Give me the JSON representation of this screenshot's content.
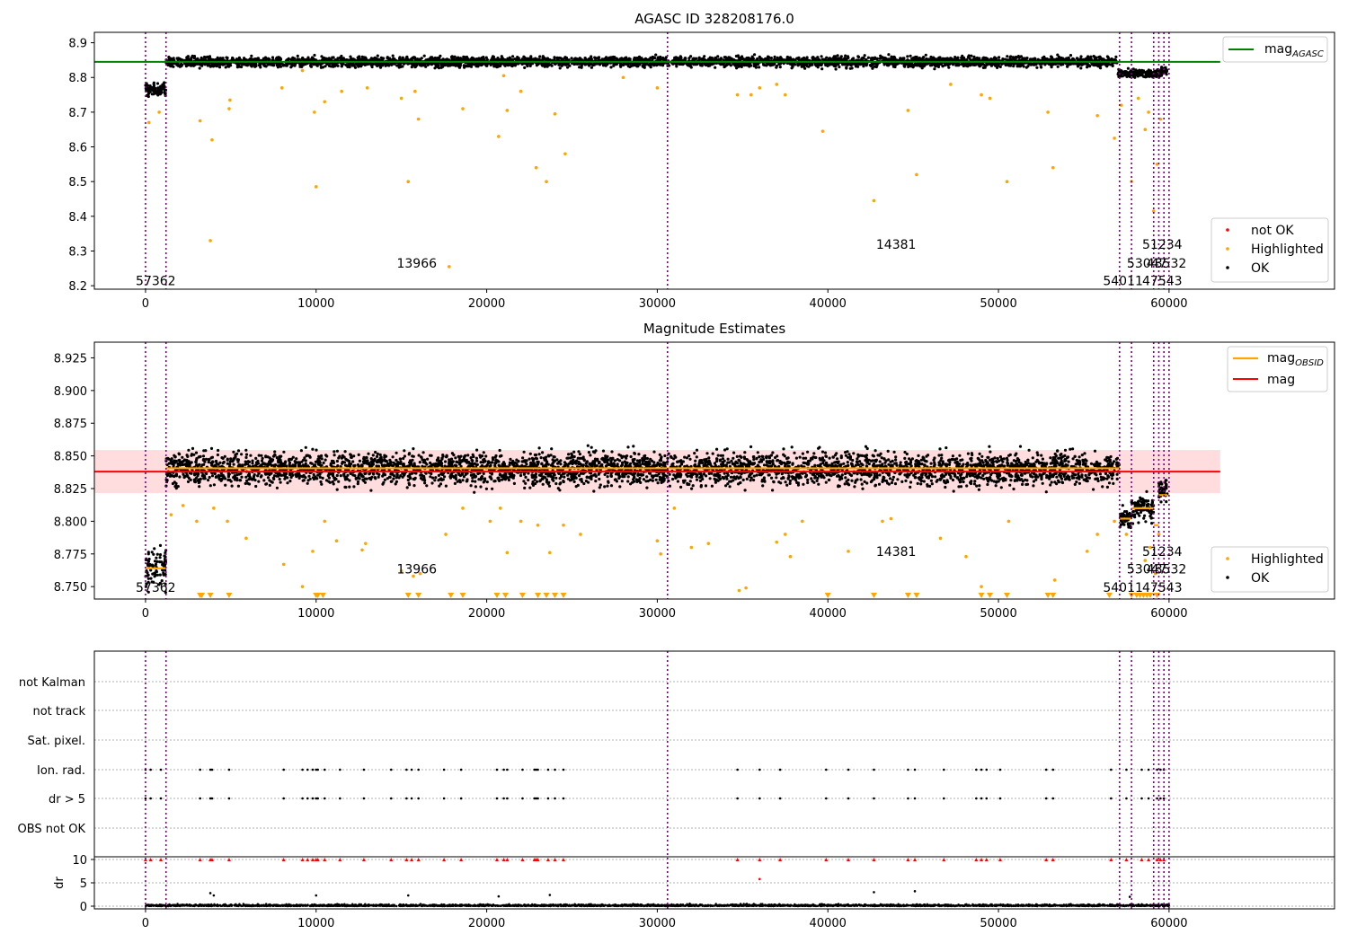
{
  "chart_data": [
    {
      "type": "scatter",
      "title": "AGASC ID 328208176.0",
      "x_ticks": [
        0,
        10000,
        20000,
        30000,
        40000,
        50000,
        60000
      ],
      "y_ticks": [
        8.2,
        8.3,
        8.4,
        8.5,
        8.6,
        8.7,
        8.8,
        8.9
      ],
      "xlim": [
        -3000,
        69700
      ],
      "ylim": [
        8.19,
        8.93
      ],
      "hlines": [
        {
          "label_main": "mag",
          "label_sub": "AGASC",
          "y": 8.845,
          "x": [
            -3000,
            63000
          ],
          "color": "#008000"
        }
      ],
      "legend": [
        "not OK",
        "Highlighted",
        "OK"
      ],
      "legend_colors": [
        "#ff0000",
        "#ffa500",
        "#000000"
      ],
      "segments": [
        {
          "x": [
            0,
            1200
          ],
          "y": 8.765,
          "spread": 0.035
        },
        {
          "x": [
            1200,
            57000
          ],
          "y": 8.845,
          "spread": 0.025
        },
        {
          "x": [
            57000,
            59500
          ],
          "y": 8.812,
          "spread": 0.02
        },
        {
          "x": [
            59500,
            59900
          ],
          "y": 8.82,
          "spread": 0.02
        }
      ],
      "highlighted_points": [
        [
          200,
          8.67
        ],
        [
          800,
          8.7
        ],
        [
          3200,
          8.675
        ],
        [
          3800,
          8.33
        ],
        [
          3900,
          8.62
        ],
        [
          4900,
          8.71
        ],
        [
          4950,
          8.735
        ],
        [
          8000,
          8.77
        ],
        [
          9200,
          8.82
        ],
        [
          9900,
          8.7
        ],
        [
          10000,
          8.485
        ],
        [
          10500,
          8.73
        ],
        [
          11500,
          8.76
        ],
        [
          13000,
          8.77
        ],
        [
          15000,
          8.74
        ],
        [
          15400,
          8.5
        ],
        [
          15800,
          8.76
        ],
        [
          16000,
          8.68
        ],
        [
          17800,
          8.255
        ],
        [
          18600,
          8.71
        ],
        [
          20700,
          8.63
        ],
        [
          21000,
          8.805
        ],
        [
          21200,
          8.705
        ],
        [
          22000,
          8.76
        ],
        [
          22900,
          8.54
        ],
        [
          23500,
          8.5
        ],
        [
          24000,
          8.695
        ],
        [
          24600,
          8.58
        ],
        [
          28000,
          8.8
        ],
        [
          30000,
          8.77
        ],
        [
          34700,
          8.75
        ],
        [
          35500,
          8.75
        ],
        [
          36000,
          8.77
        ],
        [
          37000,
          8.78
        ],
        [
          37500,
          8.75
        ],
        [
          39700,
          8.645
        ],
        [
          42700,
          8.445
        ],
        [
          44700,
          8.705
        ],
        [
          45200,
          8.52
        ],
        [
          47200,
          8.78
        ],
        [
          49000,
          8.75
        ],
        [
          49500,
          8.74
        ],
        [
          50500,
          8.5
        ],
        [
          52900,
          8.7
        ],
        [
          53200,
          8.54
        ],
        [
          55800,
          8.69
        ],
        [
          56800,
          8.625
        ],
        [
          57200,
          8.72
        ],
        [
          57800,
          8.5
        ],
        [
          58200,
          8.74
        ],
        [
          58600,
          8.65
        ],
        [
          58800,
          8.7
        ],
        [
          59100,
          8.415
        ],
        [
          59300,
          8.55
        ],
        [
          59500,
          8.68
        ]
      ],
      "vlines": [
        0,
        1200,
        30600,
        57100,
        57800,
        59100,
        59400,
        59700,
        60000
      ],
      "annotations": [
        {
          "text": "57362",
          "x": 600,
          "y": 8.215
        },
        {
          "text": "13966",
          "x": 15900,
          "y": 8.265
        },
        {
          "text": "14381",
          "x": 44000,
          "y": 8.32
        },
        {
          "text": "51234",
          "x": 59600,
          "y": 8.32
        },
        {
          "text": "53047",
          "x": 58700,
          "y": 8.265
        },
        {
          "text": "48532",
          "x": 59850,
          "y": 8.265
        },
        {
          "text": "54011",
          "x": 57300,
          "y": 8.215
        },
        {
          "text": "47543",
          "x": 59600,
          "y": 8.215
        }
      ]
    },
    {
      "type": "scatter",
      "title": "Magnitude Estimates",
      "x_ticks": [
        0,
        10000,
        20000,
        30000,
        40000,
        50000,
        60000
      ],
      "y_ticks": [
        8.75,
        8.775,
        8.8,
        8.825,
        8.85,
        8.875,
        8.9,
        8.925
      ],
      "xlim": [
        -3000,
        69700
      ],
      "ylim": [
        8.7405,
        8.937
      ],
      "hlines": [
        {
          "label_main": "mag",
          "label_sub": "",
          "y": 8.838,
          "x": [
            -3000,
            63000
          ],
          "color": "#ff0000"
        }
      ],
      "band": {
        "y": [
          8.8215,
          8.8545
        ],
        "x": [
          -3000,
          63000
        ],
        "color": "#ffb3b8"
      },
      "obsid_lines": [
        {
          "x": [
            0,
            1200
          ],
          "y": 8.764
        },
        {
          "x": [
            1200,
            30600
          ],
          "y": 8.8405
        },
        {
          "x": [
            30600,
            57100
          ],
          "y": 8.8405
        },
        {
          "x": [
            57100,
            57800
          ],
          "y": 8.802
        },
        {
          "x": [
            57800,
            59100
          ],
          "y": 8.81
        },
        {
          "x": [
            59100,
            59400
          ],
          "y": 8.797
        },
        {
          "x": [
            59400,
            59900
          ],
          "y": 8.82
        }
      ],
      "obsid_label": {
        "main": "mag",
        "sub": "OBSID"
      },
      "legend": [
        "Highlighted",
        "OK"
      ],
      "legend_colors": [
        "#ffa500",
        "#000000"
      ],
      "segments": [
        {
          "x": [
            0,
            1200
          ],
          "y": 8.765,
          "spread": 0.03
        },
        {
          "x": [
            1200,
            57100
          ],
          "y": 8.84,
          "spread": 0.022
        },
        {
          "x": [
            57100,
            57800
          ],
          "y": 8.802,
          "spread": 0.015
        },
        {
          "x": [
            57800,
            59100
          ],
          "y": 8.81,
          "spread": 0.015
        },
        {
          "x": [
            59400,
            59900
          ],
          "y": 8.825,
          "spread": 0.02
        }
      ],
      "highlighted_points": [
        [
          1500,
          8.805
        ],
        [
          2200,
          8.812
        ],
        [
          3000,
          8.8
        ],
        [
          4000,
          8.81
        ],
        [
          4800,
          8.8
        ],
        [
          5900,
          8.787
        ],
        [
          8100,
          8.767
        ],
        [
          9200,
          8.75
        ],
        [
          9800,
          8.777
        ],
        [
          10500,
          8.8
        ],
        [
          11200,
          8.785
        ],
        [
          12700,
          8.778
        ],
        [
          12900,
          8.783
        ],
        [
          15000,
          8.762
        ],
        [
          15700,
          8.758
        ],
        [
          16100,
          8.76
        ],
        [
          17600,
          8.79
        ],
        [
          18600,
          8.81
        ],
        [
          20200,
          8.8
        ],
        [
          20800,
          8.81
        ],
        [
          21200,
          8.776
        ],
        [
          22000,
          8.8
        ],
        [
          23000,
          8.797
        ],
        [
          23700,
          8.776
        ],
        [
          24500,
          8.797
        ],
        [
          25500,
          8.79
        ],
        [
          30000,
          8.785
        ],
        [
          30200,
          8.775
        ],
        [
          31000,
          8.81
        ],
        [
          32000,
          8.78
        ],
        [
          33000,
          8.783
        ],
        [
          34800,
          8.747
        ],
        [
          35200,
          8.749
        ],
        [
          37000,
          8.784
        ],
        [
          37500,
          8.79
        ],
        [
          37800,
          8.773
        ],
        [
          38500,
          8.8
        ],
        [
          41200,
          8.777
        ],
        [
          43200,
          8.8
        ],
        [
          43700,
          8.802
        ],
        [
          46600,
          8.787
        ],
        [
          48100,
          8.773
        ],
        [
          49000,
          8.75
        ],
        [
          50600,
          8.8
        ],
        [
          53300,
          8.755
        ],
        [
          55200,
          8.777
        ],
        [
          55800,
          8.79
        ],
        [
          56800,
          8.8
        ],
        [
          57500,
          8.79
        ],
        [
          58600,
          8.77
        ],
        [
          58900,
          8.78
        ],
        [
          59200,
          8.76
        ],
        [
          59400,
          8.79
        ]
      ],
      "low_markers": [
        3200,
        3300,
        3800,
        4900,
        10000,
        10100,
        10400,
        15400,
        16000,
        17900,
        18600,
        20600,
        21100,
        22100,
        23000,
        23500,
        24000,
        24500,
        40000,
        42700,
        44700,
        45200,
        49000,
        49500,
        50500,
        52900,
        53200,
        56500,
        57800,
        58100,
        58300,
        58500,
        58700,
        58900,
        59300
      ],
      "vlines": [
        0,
        1200,
        30600,
        57100,
        57800,
        59100,
        59400,
        59700,
        60000
      ],
      "annotations": [
        {
          "text": "57362",
          "x": 600,
          "y": 8.7495
        },
        {
          "text": "13966",
          "x": 15900,
          "y": 8.7635
        },
        {
          "text": "14381",
          "x": 44000,
          "y": 8.777
        },
        {
          "text": "51234",
          "x": 59600,
          "y": 8.777
        },
        {
          "text": "53047",
          "x": 58700,
          "y": 8.7635
        },
        {
          "text": "48532",
          "x": 59850,
          "y": 8.7635
        },
        {
          "text": "54011",
          "x": 57300,
          "y": 8.7495
        },
        {
          "text": "47543",
          "x": 59600,
          "y": 8.7495
        }
      ]
    },
    {
      "type": "scatter",
      "title": "",
      "ylabel": "dr",
      "flag_rows": [
        "not Kalman",
        "not track",
        "Sat. pixel.",
        "Ion. rad.",
        "dr > 5",
        "OBS not OK"
      ],
      "dr_ticks": [
        0,
        5,
        10
      ],
      "x_ticks": [
        0,
        10000,
        20000,
        30000,
        40000,
        50000,
        60000
      ],
      "xlim": [
        -3000,
        69700
      ],
      "flag_points_x": [
        0,
        300,
        900,
        3200,
        3800,
        3900,
        4900,
        8100,
        9200,
        9500,
        9800,
        10000,
        10100,
        10500,
        11400,
        12800,
        14400,
        15300,
        15600,
        16000,
        17500,
        18500,
        20600,
        21000,
        21200,
        22100,
        22800,
        22900,
        23000,
        23600,
        24000,
        24500,
        34700,
        36000,
        37200,
        39900,
        41200,
        42700,
        44700,
        45100,
        46800,
        48700,
        49000,
        49300,
        50100,
        52800,
        53200,
        56600,
        57500,
        58400,
        58800,
        59300,
        59500,
        59700
      ],
      "dr_outliers": [
        [
          3800,
          2.8
        ],
        [
          4000,
          2.3
        ],
        [
          10000,
          2.3
        ],
        [
          15400,
          2.3
        ],
        [
          20700,
          2.1
        ],
        [
          23700,
          2.4
        ],
        [
          36000,
          5.8
        ],
        [
          42700,
          3.0
        ],
        [
          45100,
          3.2
        ],
        [
          57700,
          2.0
        ]
      ],
      "vlines": [
        0,
        1200,
        30600,
        57100,
        57800,
        59100,
        59400,
        59700,
        60000
      ]
    }
  ]
}
